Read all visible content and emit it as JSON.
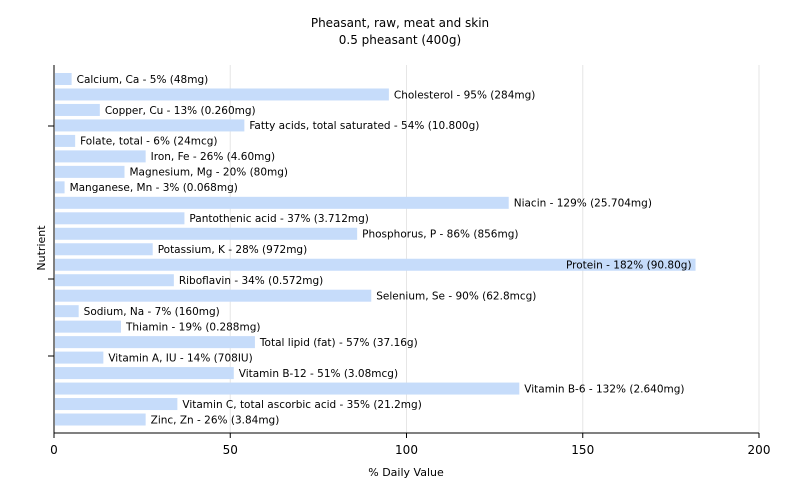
{
  "chart_data": {
    "type": "bar",
    "orientation": "horizontal",
    "title": "Pheasant, raw, meat and skin",
    "subtitle": "0.5 pheasant (400g)",
    "xlabel": "% Daily Value",
    "ylabel": "Nutrient",
    "xlim": [
      0,
      200
    ],
    "xticks": [
      "0",
      "50",
      "100",
      "150",
      "200"
    ],
    "grid": "vertical",
    "bar_color": "#c6dcfa",
    "categories": [
      "Calcium, Ca",
      "Cholesterol",
      "Copper, Cu",
      "Fatty acids, total saturated",
      "Folate, total",
      "Iron, Fe",
      "Magnesium, Mg",
      "Manganese, Mn",
      "Niacin",
      "Pantothenic acid",
      "Phosphorus, P",
      "Potassium, K",
      "Protein",
      "Riboflavin",
      "Selenium, Se",
      "Sodium, Na",
      "Thiamin",
      "Total lipid (fat)",
      "Vitamin A, IU",
      "Vitamin B-12",
      "Vitamin B-6",
      "Vitamin C, total ascorbic acid",
      "Zinc, Zn"
    ],
    "values": [
      5,
      95,
      13,
      54,
      6,
      26,
      20,
      3,
      129,
      37,
      86,
      28,
      182,
      34,
      90,
      7,
      19,
      57,
      14,
      51,
      132,
      35,
      26
    ],
    "labels": [
      "Calcium, Ca - 5% (48mg)",
      "Cholesterol - 95% (284mg)",
      "Copper, Cu - 13% (0.260mg)",
      "Fatty acids, total saturated - 54% (10.800g)",
      "Folate, total - 6% (24mcg)",
      "Iron, Fe - 26% (4.60mg)",
      "Magnesium, Mg - 20% (80mg)",
      "Manganese, Mn - 3% (0.068mg)",
      "Niacin - 129% (25.704mg)",
      "Pantothenic acid - 37% (3.712mg)",
      "Phosphorus, P - 86% (856mg)",
      "Potassium, K - 28% (972mg)",
      "Protein - 182% (90.80g)",
      "Riboflavin - 34% (0.572mg)",
      "Selenium, Se - 90% (62.8mcg)",
      "Sodium, Na - 7% (160mg)",
      "Thiamin - 19% (0.288mg)",
      "Total lipid (fat) - 57% (37.16g)",
      "Vitamin A, IU - 14% (708IU)",
      "Vitamin B-12 - 51% (3.08mcg)",
      "Vitamin B-6 - 132% (2.640mg)",
      "Vitamin C, total ascorbic acid - 35% (21.2mg)",
      "Zinc, Zn - 26% (3.84mg)"
    ]
  }
}
